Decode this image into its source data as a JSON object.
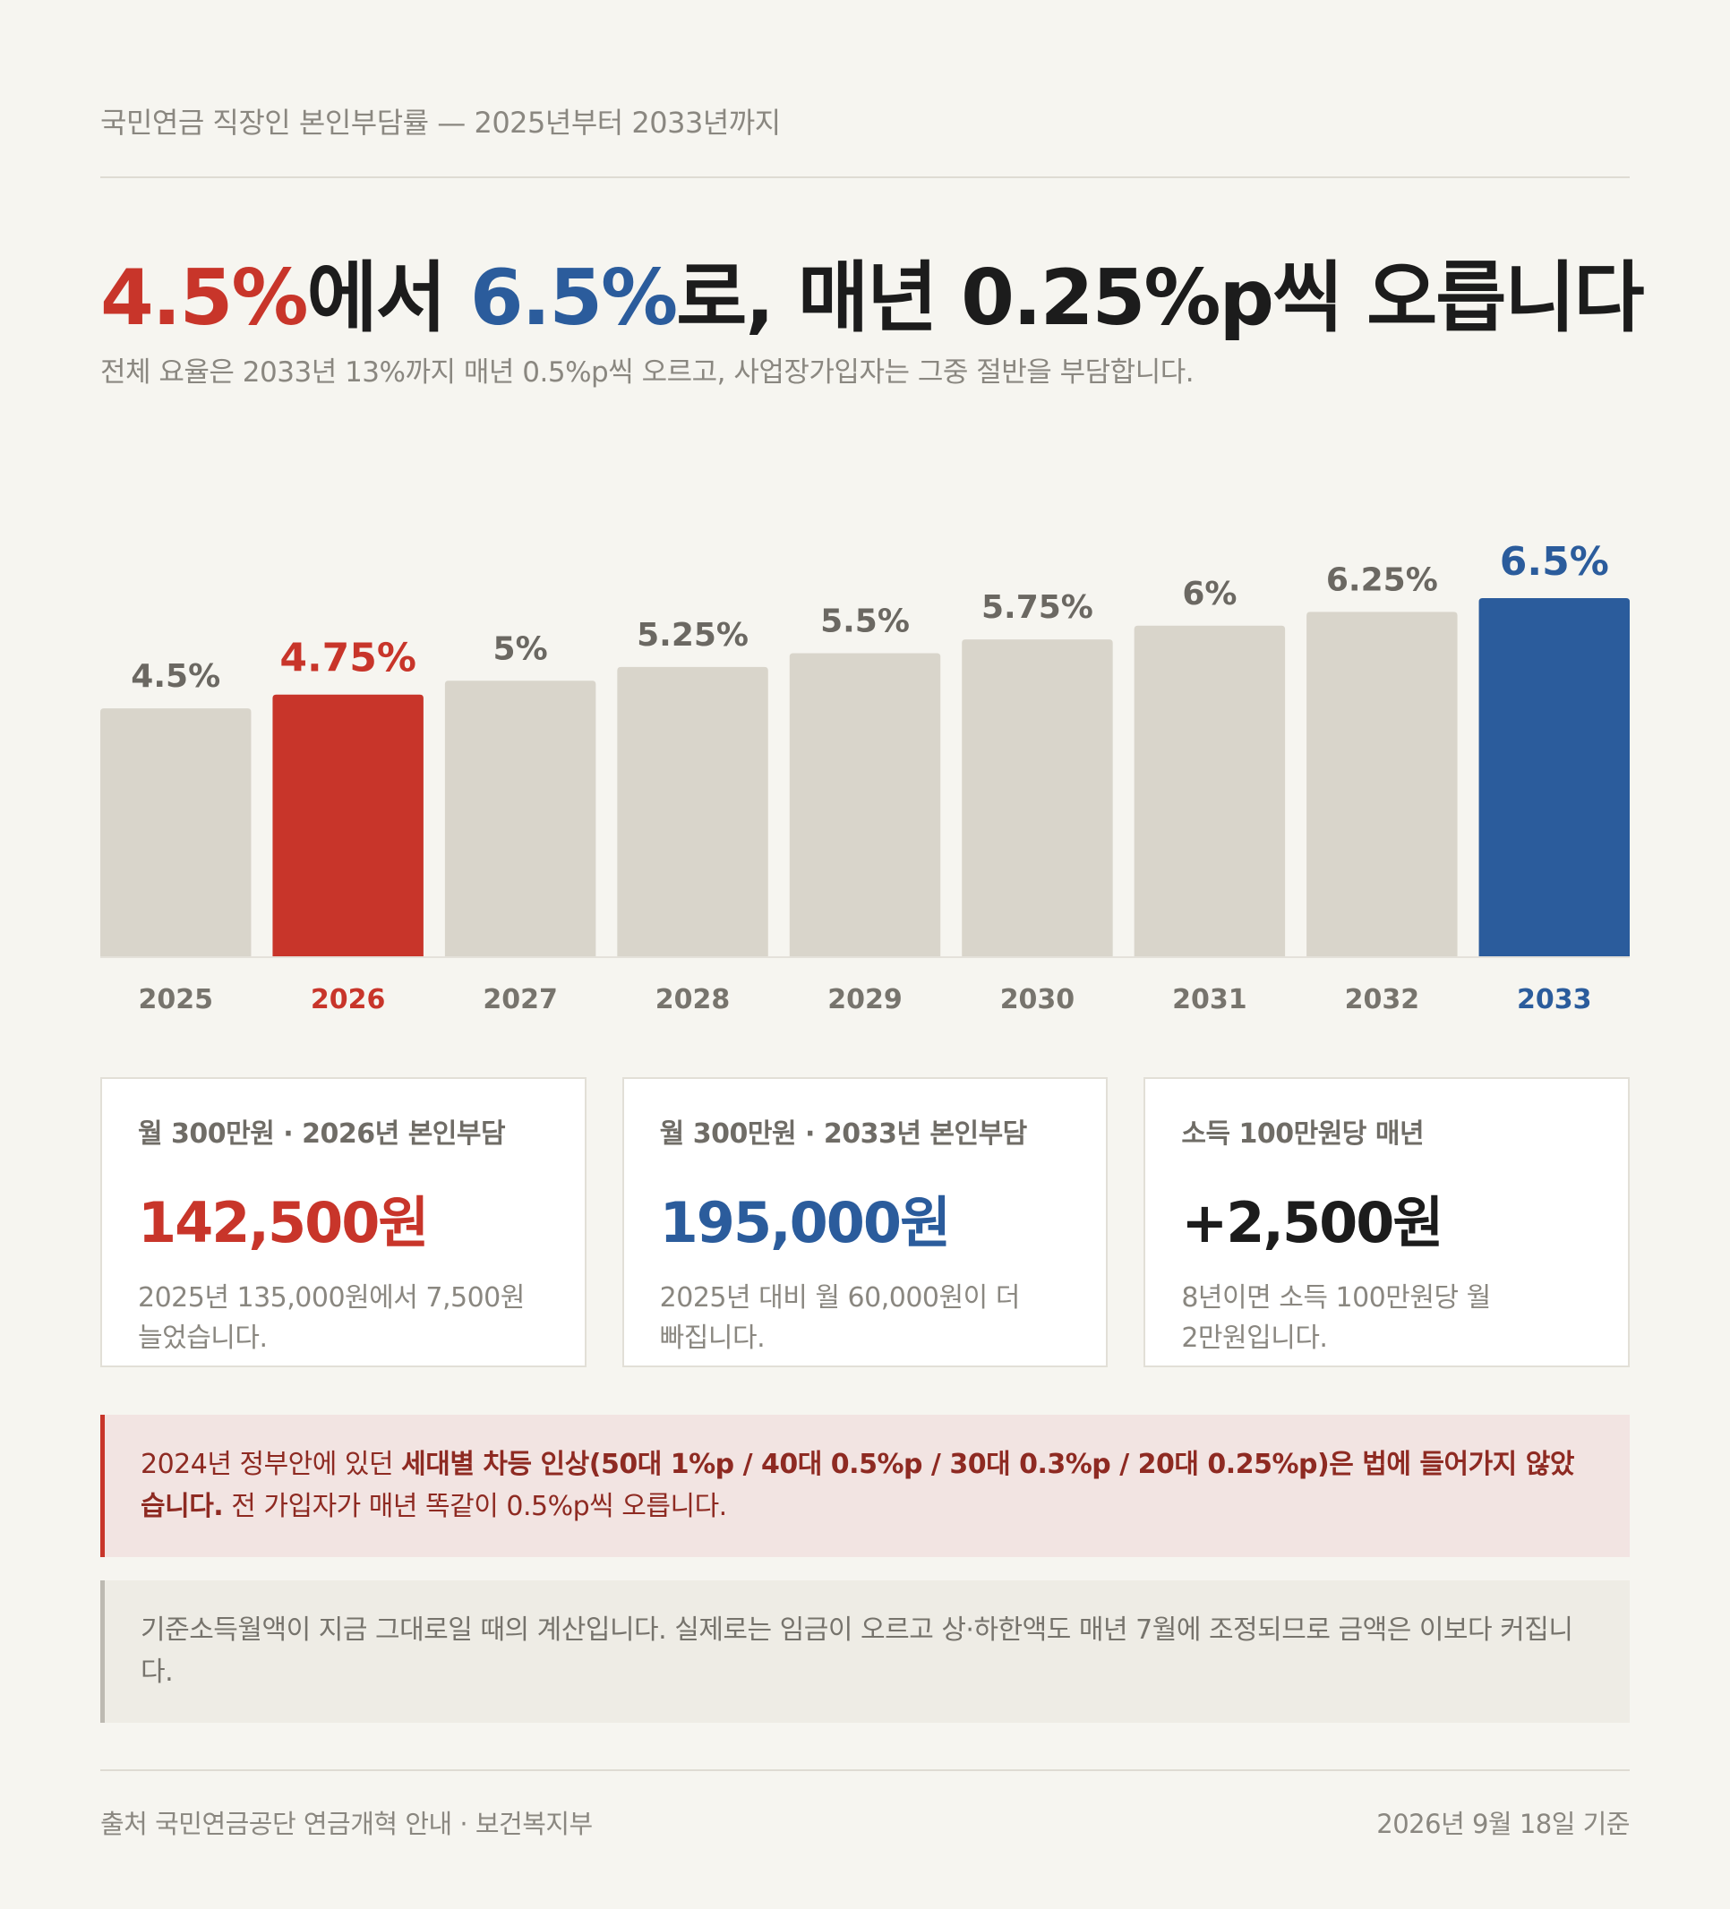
{
  "header": {
    "eyebrow": "국민연금 직장인 본인부담률 — 2025년부터 2033년까지",
    "headline": {
      "part1": "4.5%",
      "part2": "에서 ",
      "part3": "6.5%",
      "part4": "로, 매년 0.25%p씩 오릅니다"
    },
    "subline": "전체 요율은 2033년 13%까지 매년 0.5%p씩 오르고, 사업장가입자는 그중 절반을 부담합니다."
  },
  "colors": {
    "bar_default": "#d9d5cb",
    "bar_highlight_current": "#c8352a",
    "bar_highlight_target": "#2b5c9c",
    "label_default": "#6b6862",
    "text_dark": "#1c1c1c"
  },
  "chart_data": {
    "type": "bar",
    "categories": [
      "2025",
      "2026",
      "2027",
      "2028",
      "2029",
      "2030",
      "2031",
      "2032",
      "2033"
    ],
    "values": [
      4.5,
      4.75,
      5.0,
      5.25,
      5.5,
      5.75,
      6.0,
      6.25,
      6.5
    ],
    "value_labels": [
      "4.5%",
      "4.75%",
      "5%",
      "5.25%",
      "5.5%",
      "5.75%",
      "6%",
      "6.25%",
      "6.5%"
    ],
    "highlight": {
      "2026": "current",
      "2033": "target"
    },
    "ylim": [
      0,
      6.5
    ],
    "grid": false,
    "title": "",
    "xlabel": "",
    "ylabel": ""
  },
  "cards": [
    {
      "label": "월 300만원 · 2026년 본인부담",
      "value": "142,500원",
      "value_color": "#c8352a",
      "note_line1": "2025년 135,000원에서 7,500원",
      "note_line2": "늘었습니다."
    },
    {
      "label": "월 300만원 · 2033년 본인부담",
      "value": "195,000원",
      "value_color": "#2b5c9c",
      "note_line1": "2025년 대비 월 60,000원이 더",
      "note_line2": "빠집니다."
    },
    {
      "label": "소득 100만원당 매년",
      "value": "+2,500원",
      "value_color": "#1c1c1c",
      "note_line1": "8년이면 소득 100만원당 월",
      "note_line2": "2만원입니다."
    }
  ],
  "notes": {
    "red": {
      "pre": "2024년 정부안에 있던 ",
      "bold": "세대별 차등 인상(50대 1%p / 40대 0.5%p / 30대 0.3%p / 20대 0.25%p)은 법에 들어가지 않았습니다.",
      "post": " 전 가입자가 매년 똑같이 0.5%p씩 오릅니다."
    },
    "gray": "기준소득월액이 지금 그대로일 때의 계산입니다. 실제로는 임금이 오르고 상·하한액도 매년 7월에 조정되므로 금액은 이보다 커집니다."
  },
  "footer": {
    "source": "출처 국민연금공단 연금개혁 안내 · 보건복지부",
    "date": "2026년 9월 18일 기준"
  }
}
